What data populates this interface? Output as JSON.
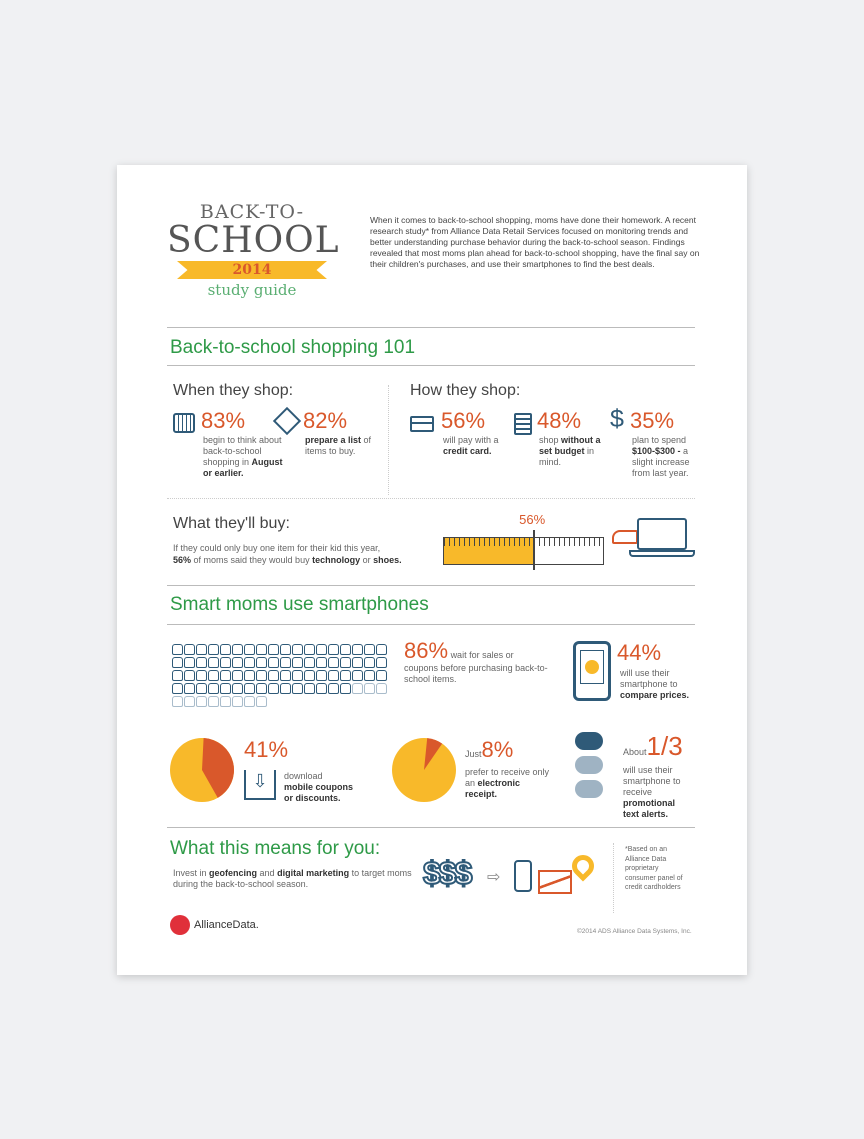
{
  "header": {
    "title_line1": "BACK-TO-",
    "title_line2": "SCHOOL",
    "year": "2014",
    "subtitle": "study guide",
    "intro": "When it comes to back-to-school shopping, moms have done their homework. A recent research study* from Alliance Data Retail Services focused on monitoring trends and better understanding purchase behavior during the back-to-school season. Findings revealed that most moms plan ahead for back-to-school shopping, have the final say on their children's purchases, and use their smartphones to find the best deals."
  },
  "section1": {
    "title": "Back-to-school shopping 101",
    "when": {
      "title": "When they shop:",
      "s1": {
        "pct": "83%",
        "t1": "begin to think about back-to-school shopping in ",
        "b1": "August or earlier."
      },
      "s2": {
        "pct": "82%",
        "b1": "prepare a list",
        "t1": " of items to buy."
      }
    },
    "how": {
      "title": "How they shop:",
      "s1": {
        "pct": "56%",
        "t1": "will pay with a ",
        "b1": "credit card."
      },
      "s2": {
        "pct": "48%",
        "t1": "shop ",
        "b1": "without a set budget",
        "t2": " in mind."
      },
      "s3": {
        "pct": "35%",
        "t1": "plan to spend ",
        "b1": "$100-$300 -",
        "t2": " a slight increase from last year."
      }
    },
    "buy": {
      "title": "What they'll buy:",
      "line1": "If they could only buy one item for their kid this year,",
      "pct": "56%",
      "t1": " of moms said they would buy ",
      "o1": "technology",
      "t2": " or ",
      "o2": "shoes.",
      "ruler_label": "56%",
      "ruler_value": 56
    }
  },
  "section2": {
    "title": "Smart moms use smartphones",
    "s1": {
      "pct": "86%",
      "value": 86,
      "t1": "wait for sales or coupons before purchasing back-to-school items."
    },
    "s2": {
      "pct": "44%",
      "t1": "will use their smartphone to ",
      "b1": "compare prices."
    },
    "s3": {
      "pct": "41%",
      "value": 41,
      "t1": "download ",
      "b1": "mobile coupons or discounts."
    },
    "s4": {
      "pre": "Just",
      "pct": "8%",
      "value": 8,
      "t1": "prefer to receive only an ",
      "b1": "electronic receipt."
    },
    "s5": {
      "pre": "About",
      "pct": "1/3",
      "t1": "will use their smartphone to receive ",
      "b1": "promotional text alerts."
    }
  },
  "section3": {
    "title": "What this means for you:",
    "t1": "Invest in ",
    "o1": "geofencing",
    "t2": " and ",
    "o2": "digital marketing",
    "t3": " to target moms during the back-to-school season.",
    "dollars": "$$$",
    "footnote": "*Based on an Alliance Data proprietary consumer panel of credit cardholders"
  },
  "footer": {
    "logo": "AllianceData.",
    "copyright": "©2014 ADS Alliance Data Systems, Inc."
  },
  "colors": {
    "green": "#2e9a47",
    "orange": "#d9582b",
    "yellow": "#f8b92a",
    "navy": "#2f5a78"
  }
}
